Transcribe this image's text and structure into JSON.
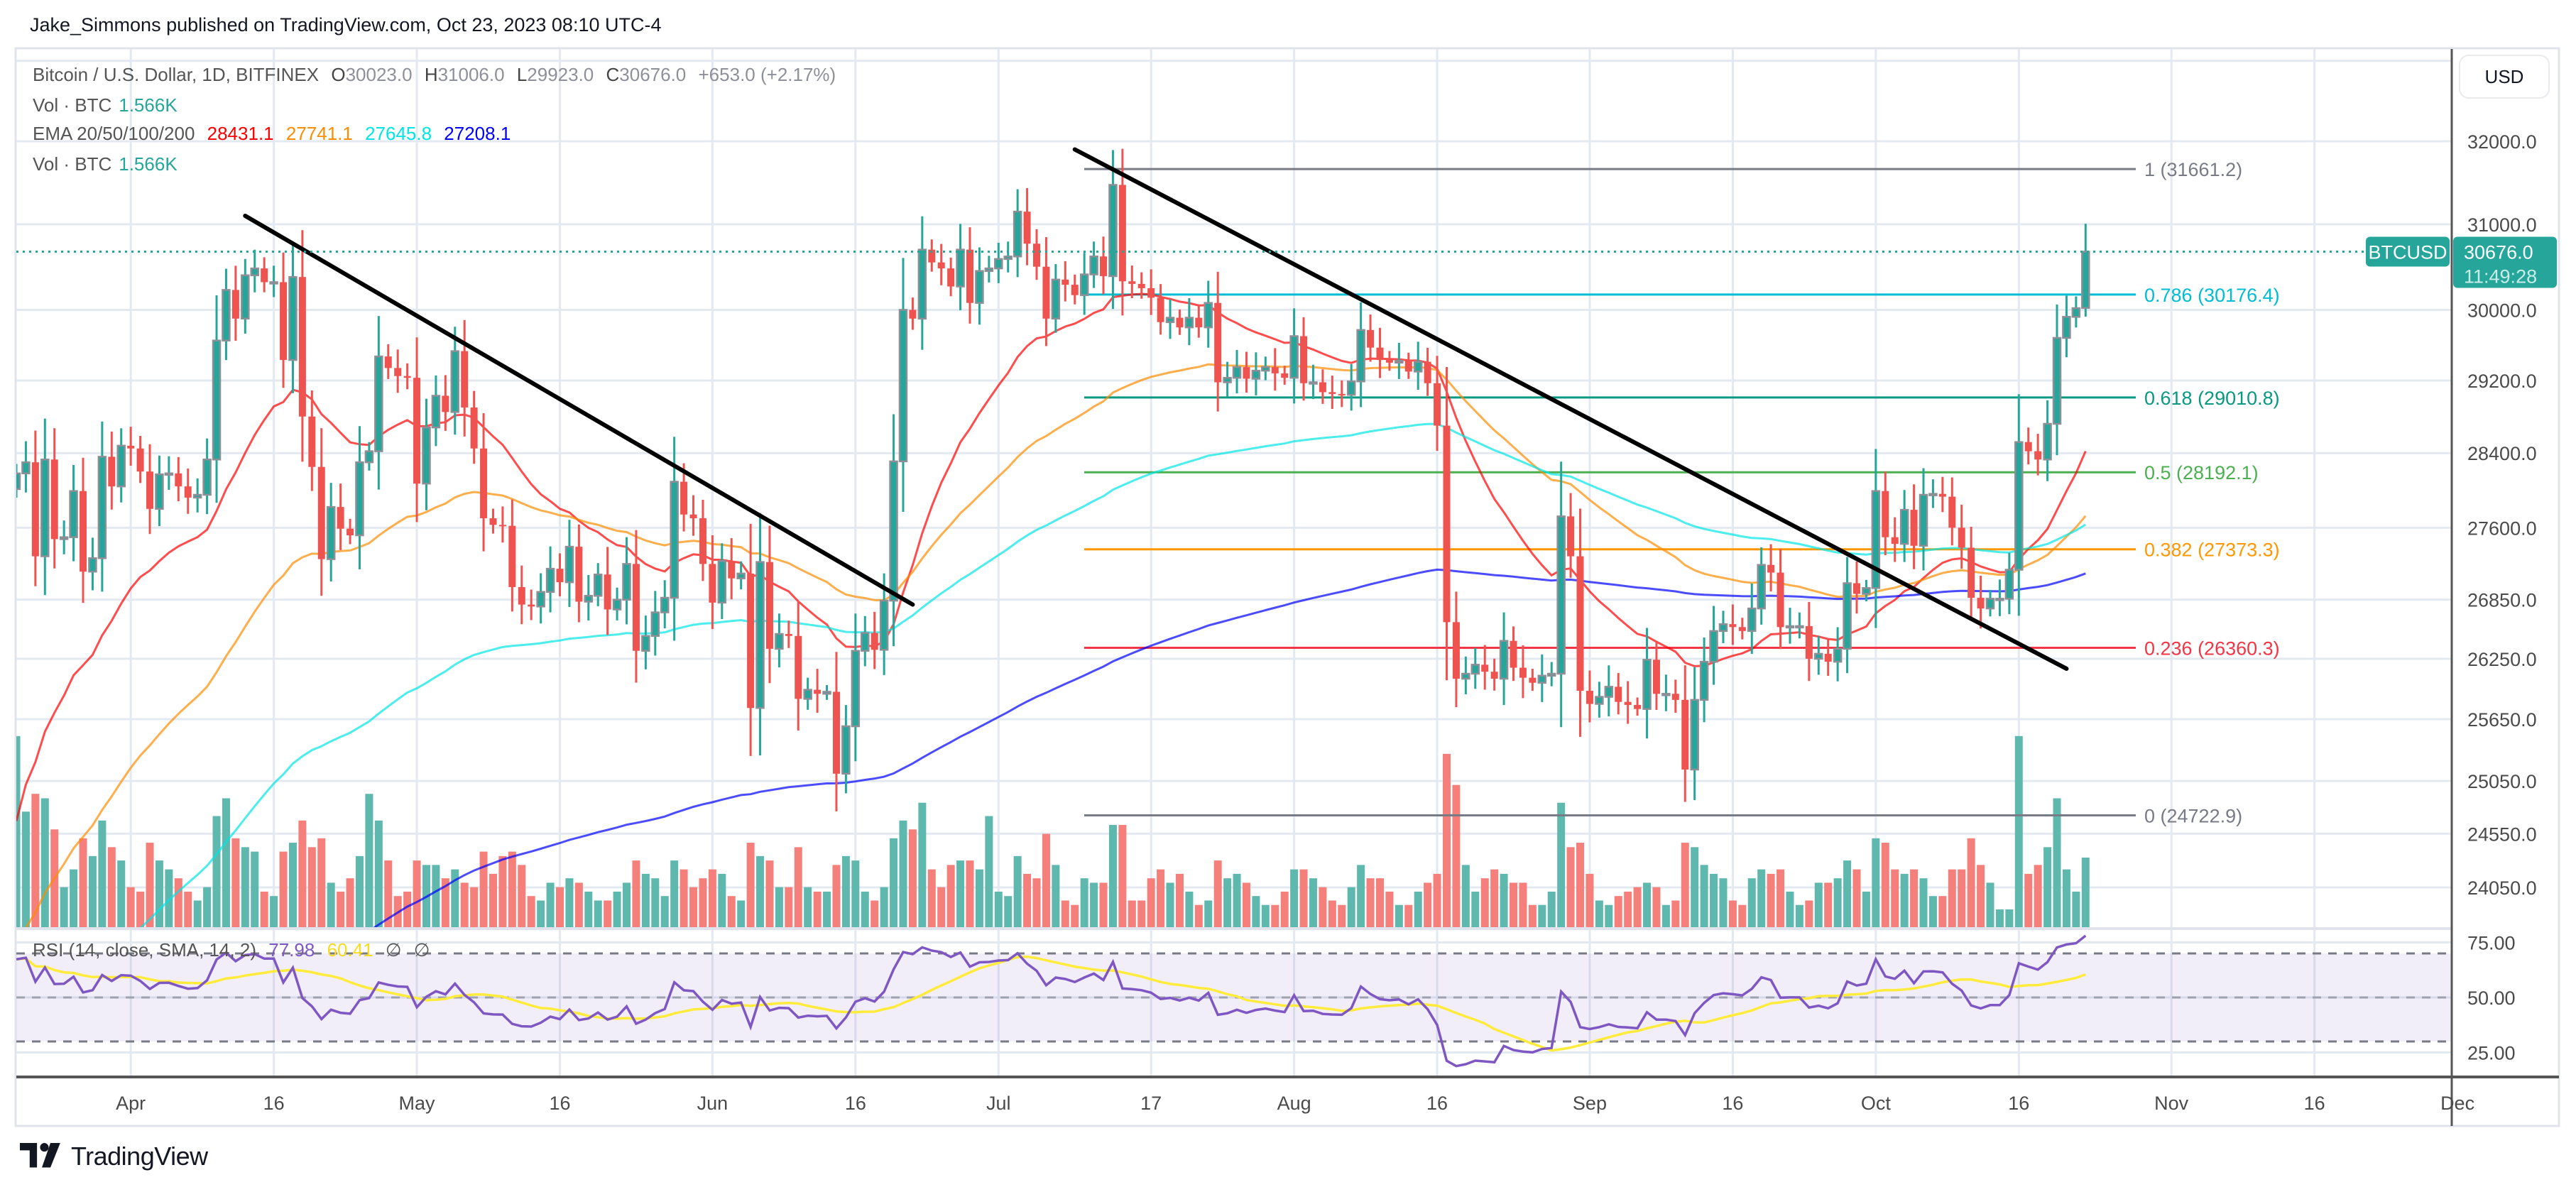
{
  "header": {
    "title": "Jake_Simmons published on TradingView.com, Oct 23, 2023 08:10 UTC-4"
  },
  "legend": {
    "symbol": "Bitcoin / U.S. Dollar, 1D, BITFINEX",
    "o_label": "O",
    "o": "30023.0",
    "h_label": "H",
    "h": "31006.0",
    "l_label": "L",
    "l": "29923.0",
    "c_label": "C",
    "c": "30676.0",
    "change": "+653.0 (+2.17%)",
    "vol_label": "Vol · BTC",
    "vol_value": "1.566K",
    "ema_label": "EMA 20/50/100/200",
    "ema_values": [
      "28431.1",
      "27741.1",
      "27645.8",
      "27208.1"
    ],
    "ema_colors": [
      "#ff0000",
      "#ff8c00",
      "#00e5e5",
      "#0000ff"
    ],
    "vol2_label": "Vol · BTC",
    "vol2_value": "1.566K"
  },
  "rsi_legend": {
    "label": "RSI (14, close, SMA, 14, 2)",
    "rsi": "77.98",
    "sma": "60.41",
    "extra1": "∅",
    "extra2": "∅"
  },
  "price_axis": {
    "currency": "USD",
    "ticks": [
      "32000.0",
      "31000.0",
      "30000.0",
      "29200.0",
      "28400.0",
      "27600.0",
      "26850.0",
      "26250.0",
      "25650.0",
      "25050.0",
      "24550.0",
      "24050.0"
    ],
    "scale": "log",
    "last_symbol": "BTCUSD",
    "last_price": "30676.0",
    "countdown": "11:49:28"
  },
  "rsi_axis": {
    "ticks": [
      "75.00",
      "50.00",
      "25.00"
    ],
    "upper_band": 70,
    "middle": 50,
    "lower_band": 30
  },
  "time_axis": {
    "labels": [
      {
        "date": "2023-04-01",
        "text": "Apr"
      },
      {
        "date": "2023-04-16",
        "text": "16"
      },
      {
        "date": "2023-05-01",
        "text": "May"
      },
      {
        "date": "2023-05-16",
        "text": "16"
      },
      {
        "date": "2023-06-01",
        "text": "Jun"
      },
      {
        "date": "2023-06-16",
        "text": "16"
      },
      {
        "date": "2023-07-01",
        "text": "Jul"
      },
      {
        "date": "2023-07-17",
        "text": "17"
      },
      {
        "date": "2023-08-01",
        "text": "Aug"
      },
      {
        "date": "2023-08-16",
        "text": "16"
      },
      {
        "date": "2023-09-01",
        "text": "Sep"
      },
      {
        "date": "2023-09-16",
        "text": "16"
      },
      {
        "date": "2023-10-01",
        "text": "Oct"
      },
      {
        "date": "2023-10-16",
        "text": "16"
      },
      {
        "date": "2023-11-01",
        "text": "Nov"
      },
      {
        "date": "2023-11-16",
        "text": "16"
      },
      {
        "date": "2023-12-01",
        "text": "Dec"
      }
    ]
  },
  "fibonacci": [
    {
      "ratio": "1",
      "price": 31661.2,
      "label": "1 (31661.2)",
      "color": "#787b86"
    },
    {
      "ratio": "0.786",
      "price": 30176.4,
      "label": "0.786 (30176.4)",
      "color": "#00bcd4"
    },
    {
      "ratio": "0.618",
      "price": 29010.8,
      "label": "0.618 (29010.8)",
      "color": "#089981"
    },
    {
      "ratio": "0.5",
      "price": 28192.1,
      "label": "0.5 (28192.1)",
      "color": "#4caf50"
    },
    {
      "ratio": "0.382",
      "price": 27373.3,
      "label": "0.382 (27373.3)",
      "color": "#ff9800"
    },
    {
      "ratio": "0.236",
      "price": 26360.3,
      "label": "0.236 (26360.3)",
      "color": "#f23645"
    },
    {
      "ratio": "0",
      "price": 24722.9,
      "label": "0 (24722.9)",
      "color": "#787b86"
    }
  ],
  "trendlines": [
    {
      "from": {
        "date": "2023-04-13",
        "price": 31100
      },
      "to": {
        "date": "2023-06-22",
        "price": 26800
      }
    },
    {
      "from": {
        "date": "2023-07-09",
        "price": 31900
      },
      "to": {
        "date": "2023-10-21",
        "price": 26150
      }
    }
  ],
  "colors": {
    "up": "#26a69a",
    "down": "#ef5350",
    "up_border": "#8c8f96",
    "vol_up": "#5fb8ae",
    "vol_down": "#f47f7b",
    "rsi": "#7e57c2",
    "rsi_sma": "#ffeb3b",
    "rsi_band": "#7e57c2",
    "grid": "#e3e9f0"
  },
  "logo": {
    "text": "TradingView"
  },
  "chart_data": {
    "type": "candlestick",
    "symbol": "BTCUSD",
    "interval": "1D",
    "x_start": "2023-03-20",
    "y_scale": "log",
    "ylim": [
      23900,
      33150
    ],
    "grid": true,
    "close": [
      28180,
      28300,
      27300,
      28330,
      27480,
      27500,
      27990,
      27140,
      27280,
      28360,
      28040,
      28480,
      28450,
      28200,
      27800,
      28170,
      28180,
      28040,
      27920,
      27950,
      28330,
      29650,
      30230,
      29900,
      30400,
      30480,
      30320,
      30320,
      29430,
      30380,
      28800,
      28250,
      27270,
      27820,
      27590,
      27520,
      28300,
      28420,
      29470,
      29340,
      29250,
      29230,
      28070,
      28680,
      29030,
      28850,
      29530,
      28900,
      28450,
      27700,
      27630,
      27620,
      26980,
      26800,
      26780,
      26930,
      27170,
      27030,
      27400,
      26830,
      26890,
      27110,
      26750,
      26850,
      27220,
      26330,
      26480,
      26720,
      26870,
      28090,
      27740,
      27700,
      27220,
      26820,
      27250,
      27070,
      27120,
      25760,
      27240,
      26350,
      26500,
      26480,
      25850,
      25940,
      25900,
      25920,
      25120,
      25580,
      26330,
      26510,
      26340,
      26840,
      28310,
      30000,
      29900,
      30700,
      30550,
      30480,
      30270,
      30700,
      30080,
      30450,
      30480,
      30590,
      30620,
      31150,
      30770,
      30500,
      29900,
      30350,
      30290,
      30170,
      30410,
      30620,
      30390,
      31470,
      30330,
      30300,
      30250,
      30140,
      29860,
      29910,
      29800,
      29910,
      29800,
      30080,
      29180,
      29230,
      29350,
      29220,
      29310,
      29350,
      29280,
      29230,
      29700,
      29170,
      29180,
      29070,
      29050,
      29040,
      29190,
      29770,
      29570,
      29430,
      29400,
      29420,
      29300,
      29410,
      29170,
      28700,
      26620,
      26050,
      26100,
      26190,
      26120,
      26050,
      26430,
      26160,
      26060,
      26010,
      26080,
      26100,
      27720,
      27300,
      25930,
      25800,
      25870,
      25970,
      25820,
      25790,
      25750,
      26240,
      25900,
      25900,
      25840,
      25160,
      25840,
      26220,
      26530,
      26600,
      26570,
      26530,
      26760,
      27210,
      27130,
      26570,
      26580,
      26580,
      26250,
      26300,
      26220,
      26350,
      27020,
      26910,
      26970,
      27990,
      27500,
      27430,
      27790,
      27410,
      27950,
      27960,
      27930,
      27600,
      27390,
      26870,
      26760,
      26860,
      26860,
      27160,
      28520,
      28420,
      28330,
      28720,
      29680,
      29920,
      30020,
      30676
    ],
    "volume_k_btc": [
      4.3,
      2.6,
      3.0,
      2.9,
      2.2,
      0.9,
      1.3,
      2.0,
      1.6,
      2.4,
      1.8,
      1.5,
      0.9,
      0.8,
      1.9,
      1.5,
      1.3,
      1.1,
      0.8,
      0.6,
      0.9,
      2.5,
      2.9,
      2.0,
      1.8,
      1.7,
      0.8,
      0.7,
      1.7,
      1.9,
      2.4,
      1.8,
      2.0,
      1.0,
      0.8,
      1.1,
      1.6,
      3.0,
      2.4,
      1.5,
      0.7,
      0.8,
      1.5,
      1.4,
      1.4,
      1.1,
      1.3,
      1.0,
      0.9,
      1.7,
      1.2,
      1.6,
      1.7,
      1.4,
      0.7,
      0.6,
      1.0,
      0.9,
      1.1,
      1.0,
      0.8,
      0.6,
      0.6,
      0.8,
      1.0,
      1.5,
      1.2,
      1.1,
      0.7,
      1.5,
      1.3,
      0.9,
      1.1,
      1.3,
      1.2,
      0.7,
      0.6,
      1.9,
      1.6,
      1.5,
      0.9,
      0.9,
      1.8,
      0.9,
      0.8,
      0.8,
      1.4,
      1.6,
      1.5,
      0.8,
      0.6,
      0.9,
      2.0,
      2.4,
      2.2,
      2.8,
      1.3,
      0.9,
      1.4,
      1.5,
      1.5,
      1.3,
      2.5,
      0.8,
      0.7,
      1.6,
      1.2,
      1.1,
      2.1,
      1.4,
      0.6,
      0.5,
      1.1,
      1.0,
      1.0,
      2.3,
      2.3,
      0.6,
      0.6,
      1.1,
      1.3,
      1.0,
      1.2,
      0.8,
      0.5,
      0.6,
      1.5,
      1.1,
      1.2,
      1.0,
      0.7,
      0.5,
      0.5,
      0.8,
      1.3,
      1.3,
      1.1,
      0.9,
      0.6,
      0.5,
      0.9,
      1.4,
      1.1,
      1.1,
      0.8,
      0.5,
      0.5,
      0.8,
      1.0,
      1.2,
      3.9,
      3.2,
      1.4,
      0.8,
      1.1,
      1.3,
      1.2,
      1.0,
      1.0,
      0.5,
      0.5,
      0.8,
      2.8,
      1.8,
      1.9,
      1.2,
      0.6,
      0.5,
      0.7,
      0.8,
      0.9,
      1.0,
      0.9,
      0.5,
      0.6,
      1.9,
      1.8,
      1.4,
      1.2,
      1.1,
      0.6,
      0.5,
      1.1,
      1.3,
      1.2,
      1.3,
      0.8,
      0.5,
      0.6,
      1.0,
      1.0,
      1.1,
      1.5,
      1.3,
      0.8,
      2.0,
      1.9,
      1.3,
      1.2,
      1.3,
      1.1,
      0.7,
      0.7,
      1.3,
      1.3,
      2.0,
      1.4,
      1.0,
      0.4,
      0.4,
      4.3,
      1.2,
      1.4,
      1.8,
      2.9,
      1.3,
      0.8,
      1.566
    ],
    "ema_periods": [
      20,
      50,
      100,
      200
    ],
    "rsi": {
      "length": 14,
      "source": "close",
      "ma": "SMA",
      "ma_length": 14
    }
  }
}
